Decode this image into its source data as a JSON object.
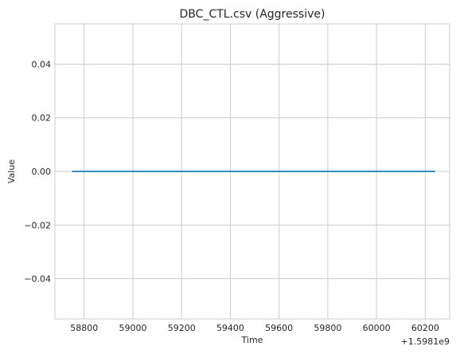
{
  "chart_data": {
    "type": "line",
    "title": "DBC_CTL.csv (Aggressive)",
    "xlabel": "Time",
    "ylabel": "Value",
    "x_offset_label": "+1.5981e9",
    "x_offset": 1598100000,
    "xlim": [
      58680,
      60300
    ],
    "ylim": [
      -0.055,
      0.055
    ],
    "x_ticks": [
      58800,
      59000,
      59200,
      59400,
      59600,
      59800,
      60000,
      60200
    ],
    "y_ticks": [
      -0.04,
      -0.02,
      0.0,
      0.02,
      0.04
    ],
    "y_tick_labels": [
      "−0.04",
      "−0.02",
      "0.00",
      "0.02",
      "0.04"
    ],
    "grid": true,
    "series": [
      {
        "x": [
          58750,
          60240
        ],
        "y": [
          0,
          0
        ],
        "color": "#1f77b4"
      }
    ]
  }
}
